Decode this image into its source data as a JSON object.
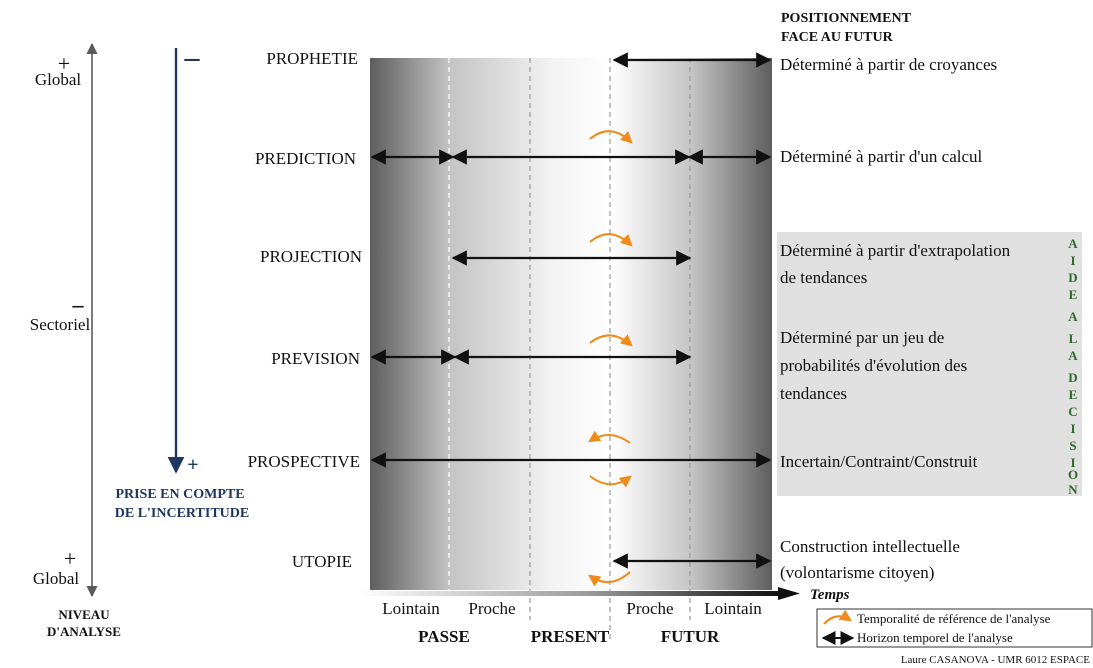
{
  "colors": {
    "navy": "#1f3660",
    "green": "#2e6b2a",
    "orange": "#f08a1c",
    "grey_axis": "#5a5a5a",
    "decision_box": "#e0e0e0"
  },
  "left_axis": {
    "top_plus": "+",
    "top_label": "Global",
    "middle_minus": "–",
    "middle_label": "Sectoriel",
    "bottom_plus": "+",
    "bottom_label": "Global",
    "title_line1": "NIVEAU",
    "title_line2": "D'ANALYSE"
  },
  "uncertainty_axis": {
    "top_sign": "–",
    "bottom_sign": "+",
    "title_line1": "PRISE EN COMPTE",
    "title_line2": "DE L'INCERTITUDE"
  },
  "methods": [
    {
      "name": "PROPHETIE"
    },
    {
      "name": "PREDICTION"
    },
    {
      "name": "PROJECTION"
    },
    {
      "name": "PREVISION"
    },
    {
      "name": "PROSPECTIVE"
    },
    {
      "name": "UTOPIE"
    }
  ],
  "right_header": {
    "line1": "POSITIONNEMENT",
    "line2": "FACE AU FUTUR"
  },
  "descriptions": [
    {
      "lines": [
        "Déterminé à partir de croyances"
      ]
    },
    {
      "lines": [
        "Déterminé à partir d'un calcul"
      ]
    },
    {
      "lines": [
        "Déterminé à partir d'extrapolation",
        "de tendances"
      ]
    },
    {
      "lines": [
        "Déterminé par un jeu de",
        "probabilités d'évolution des",
        "tendances"
      ]
    },
    {
      "lines": [
        "Incertain/Contraint/Construit"
      ]
    },
    {
      "lines": [
        "Construction intellectuelle",
        "(volontarisme citoyen)"
      ]
    }
  ],
  "decision_label": [
    "A",
    "I",
    "D",
    "E",
    "A",
    "L",
    "A",
    "D",
    "E",
    "C",
    "I",
    "S",
    "I",
    "O",
    "N"
  ],
  "time_axis": {
    "label": "Temps",
    "passe_lointain": "Lointain",
    "passe_proche": "Proche",
    "futur_proche": "Proche",
    "futur_lointain": "Lointain",
    "passe": "PASSE",
    "present": "PRESENT",
    "futur": "FUTUR"
  },
  "legend": {
    "reference": "Temporalité de référence de l'analyse",
    "horizon": "Horizon temporel de l'analyse"
  },
  "credit": "Laure CASANOVA - UMR 6012 ESPACE"
}
